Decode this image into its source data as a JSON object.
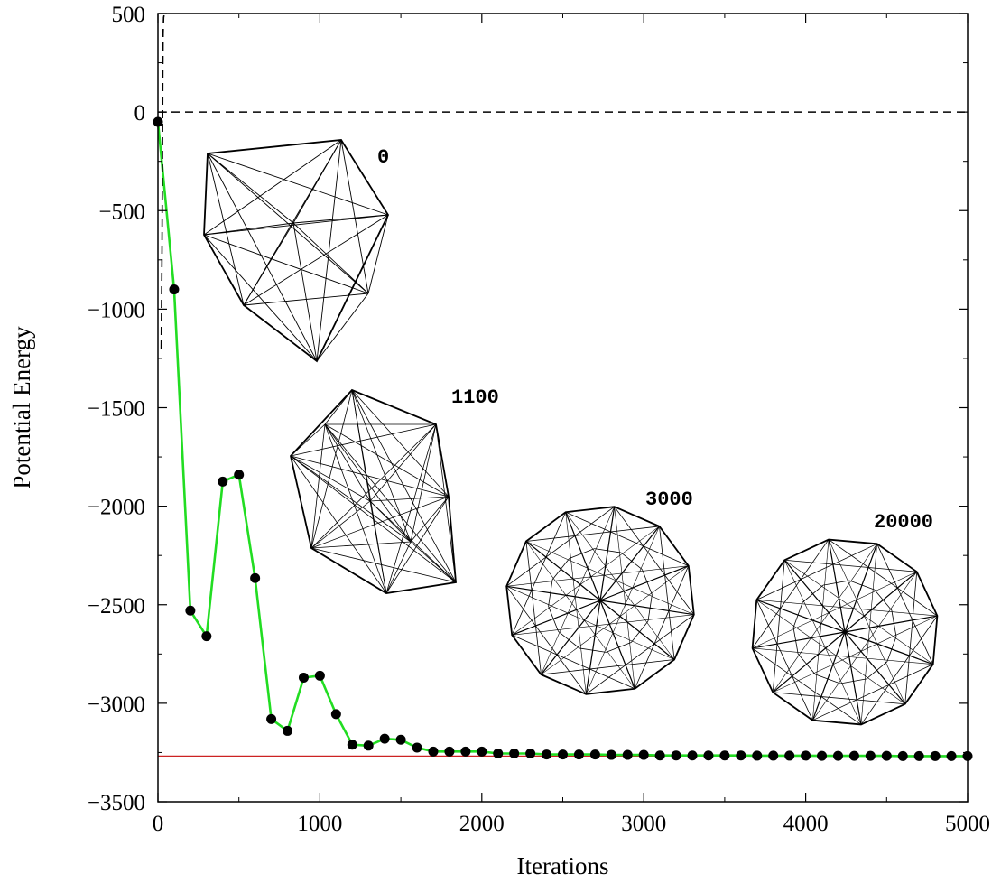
{
  "chart_data": {
    "type": "line",
    "xlabel": "Iterations",
    "ylabel": "Potential Energy",
    "xlim": [
      0,
      5000
    ],
    "ylim": [
      -3500,
      500
    ],
    "xticks": [
      0,
      1000,
      2000,
      3000,
      4000,
      5000
    ],
    "yticks": [
      500,
      0,
      -500,
      -1000,
      -1500,
      -2000,
      -2500,
      -3000,
      -3500
    ],
    "grid": false,
    "series": [
      {
        "style": "solid-green-with-black-markers",
        "color": "#22dd22",
        "marker_color": "#000000",
        "x": [
          0,
          100,
          200,
          300,
          400,
          500,
          600,
          700,
          800,
          900,
          1000,
          1100,
          1200,
          1300,
          1400,
          1500,
          1600,
          1700,
          1800,
          1900,
          2000,
          2100,
          2200,
          2300,
          2400,
          2500,
          2600,
          2700,
          2800,
          2900,
          3000,
          3100,
          3200,
          3300,
          3400,
          3500,
          3600,
          3700,
          3800,
          3900,
          4000,
          4100,
          4200,
          4300,
          4400,
          4500,
          4600,
          4700,
          4800,
          4900,
          5000
        ],
        "y": [
          -50,
          -900,
          -2530,
          -2660,
          -1875,
          -1840,
          -2365,
          -3080,
          -3140,
          -2870,
          -2860,
          -3055,
          -3210,
          -3215,
          -3180,
          -3185,
          -3225,
          -3245,
          -3245,
          -3245,
          -3245,
          -3255,
          -3255,
          -3255,
          -3260,
          -3260,
          -3260,
          -3260,
          -3262,
          -3262,
          -3262,
          -3265,
          -3265,
          -3265,
          -3265,
          -3265,
          -3265,
          -3266,
          -3266,
          -3266,
          -3266,
          -3267,
          -3267,
          -3267,
          -3267,
          -3267,
          -3268,
          -3268,
          -3268,
          -3268,
          -3268
        ]
      },
      {
        "style": "dashed-black",
        "color": "#000000",
        "x": [
          20,
          25,
          28,
          30,
          32,
          35,
          40,
          45
        ],
        "y": [
          -1200,
          -700,
          -200,
          200,
          400,
          480,
          500,
          500
        ]
      }
    ],
    "reference_lines": [
      {
        "orientation": "horizontal",
        "y": 0,
        "style": "dashed",
        "color": "#000000"
      },
      {
        "orientation": "horizontal",
        "y": -3268,
        "style": "solid",
        "color": "#cc2222"
      }
    ],
    "insets": [
      {
        "label": "0",
        "depicts": "irregular polyhedron wireframe"
      },
      {
        "label": "1100",
        "depicts": "irregular polyhedron wireframe"
      },
      {
        "label": "3000",
        "depicts": "near-spherical polyhedron wireframe"
      },
      {
        "label": "20000",
        "depicts": "spherical polyhedron wireframe"
      }
    ]
  }
}
